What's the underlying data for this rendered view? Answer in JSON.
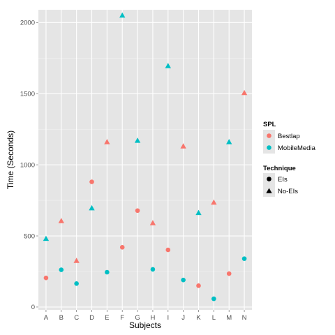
{
  "chart_data": {
    "type": "scatter",
    "xlabel": "Subjects",
    "ylabel": "Time (Seconds)",
    "categories": [
      "A",
      "B",
      "C",
      "D",
      "E",
      "F",
      "G",
      "H",
      "I",
      "J",
      "K",
      "L",
      "M",
      "N"
    ],
    "y_ticks": [
      0,
      500,
      1000,
      1500,
      2000
    ],
    "ylim": [
      -20,
      2090
    ],
    "grid": true,
    "legend_position": "right",
    "colors": {
      "Bestlap": "#F8766D",
      "MobileMedia": "#00BFC4"
    },
    "legend": {
      "color_title": "SPL",
      "color_entries": [
        "Bestlap",
        "MobileMedia"
      ],
      "shape_title": "Technique",
      "shape_entries": [
        {
          "label": "EIs",
          "shape": "circle"
        },
        {
          "label": "No-EIs",
          "shape": "triangle"
        }
      ]
    },
    "points": [
      {
        "x": "A",
        "y": 205,
        "spl": "Bestlap",
        "technique": "EIs"
      },
      {
        "x": "A",
        "y": 480,
        "spl": "MobileMedia",
        "technique": "No-EIs"
      },
      {
        "x": "B",
        "y": 262,
        "spl": "MobileMedia",
        "technique": "EIs"
      },
      {
        "x": "B",
        "y": 605,
        "spl": "Bestlap",
        "technique": "No-EIs"
      },
      {
        "x": "C",
        "y": 165,
        "spl": "MobileMedia",
        "technique": "EIs"
      },
      {
        "x": "C",
        "y": 325,
        "spl": "Bestlap",
        "technique": "No-EIs"
      },
      {
        "x": "D",
        "y": 880,
        "spl": "Bestlap",
        "technique": "EIs"
      },
      {
        "x": "D",
        "y": 695,
        "spl": "MobileMedia",
        "technique": "No-EIs"
      },
      {
        "x": "E",
        "y": 245,
        "spl": "MobileMedia",
        "technique": "EIs"
      },
      {
        "x": "E",
        "y": 1160,
        "spl": "Bestlap",
        "technique": "No-EIs"
      },
      {
        "x": "F",
        "y": 420,
        "spl": "Bestlap",
        "technique": "EIs"
      },
      {
        "x": "F",
        "y": 2050,
        "spl": "MobileMedia",
        "technique": "No-EIs"
      },
      {
        "x": "G",
        "y": 678,
        "spl": "Bestlap",
        "technique": "EIs"
      },
      {
        "x": "G",
        "y": 1170,
        "spl": "MobileMedia",
        "technique": "No-EIs"
      },
      {
        "x": "H",
        "y": 265,
        "spl": "MobileMedia",
        "technique": "EIs"
      },
      {
        "x": "H",
        "y": 590,
        "spl": "Bestlap",
        "technique": "No-EIs"
      },
      {
        "x": "I",
        "y": 402,
        "spl": "Bestlap",
        "technique": "EIs"
      },
      {
        "x": "I",
        "y": 1695,
        "spl": "MobileMedia",
        "technique": "No-EIs"
      },
      {
        "x": "J",
        "y": 190,
        "spl": "MobileMedia",
        "technique": "EIs"
      },
      {
        "x": "J",
        "y": 1130,
        "spl": "Bestlap",
        "technique": "No-EIs"
      },
      {
        "x": "K",
        "y": 150,
        "spl": "Bestlap",
        "technique": "EIs"
      },
      {
        "x": "K",
        "y": 662,
        "spl": "MobileMedia",
        "technique": "No-EIs"
      },
      {
        "x": "L",
        "y": 58,
        "spl": "MobileMedia",
        "technique": "EIs"
      },
      {
        "x": "L",
        "y": 735,
        "spl": "Bestlap",
        "technique": "No-EIs"
      },
      {
        "x": "M",
        "y": 235,
        "spl": "Bestlap",
        "technique": "EIs"
      },
      {
        "x": "M",
        "y": 1160,
        "spl": "MobileMedia",
        "technique": "No-EIs"
      },
      {
        "x": "N",
        "y": 340,
        "spl": "MobileMedia",
        "technique": "EIs"
      },
      {
        "x": "N",
        "y": 1505,
        "spl": "Bestlap",
        "technique": "No-EIs"
      }
    ]
  }
}
